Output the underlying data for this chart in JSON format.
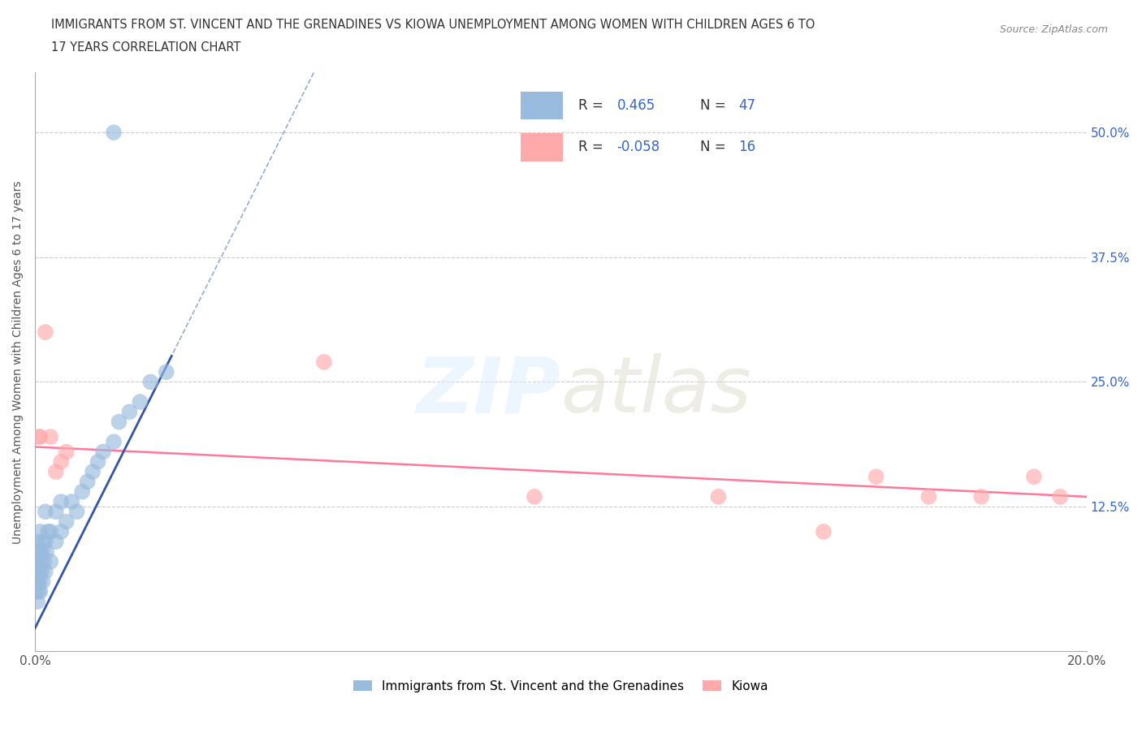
{
  "title_line1": "IMMIGRANTS FROM ST. VINCENT AND THE GRENADINES VS KIOWA UNEMPLOYMENT AMONG WOMEN WITH CHILDREN AGES 6 TO",
  "title_line2": "17 YEARS CORRELATION CHART",
  "source": "Source: ZipAtlas.com",
  "ylabel": "Unemployment Among Women with Children Ages 6 to 17 years",
  "xlim": [
    0.0,
    0.2
  ],
  "ylim": [
    -0.02,
    0.56
  ],
  "blue_R": 0.465,
  "blue_N": 47,
  "pink_R": -0.058,
  "pink_N": 16,
  "legend1_label": "Immigrants from St. Vincent and the Grenadines",
  "legend2_label": "Kiowa",
  "blue_color": "#99BBDD",
  "pink_color": "#FFAAAA",
  "blue_line_color": "#3355AA",
  "pink_line_color": "#FF7799",
  "grid_color": "#CCCCCC",
  "blue_scatter_x": [
    0.0002,
    0.0003,
    0.0003,
    0.0004,
    0.0005,
    0.0005,
    0.0006,
    0.0006,
    0.0007,
    0.0007,
    0.0008,
    0.0009,
    0.001,
    0.001,
    0.001,
    0.0012,
    0.0013,
    0.0014,
    0.0015,
    0.0016,
    0.0018,
    0.002,
    0.002,
    0.002,
    0.0022,
    0.0025,
    0.003,
    0.003,
    0.004,
    0.004,
    0.005,
    0.005,
    0.006,
    0.007,
    0.008,
    0.009,
    0.01,
    0.011,
    0.012,
    0.013,
    0.015,
    0.016,
    0.018,
    0.02,
    0.022,
    0.025,
    0.015
  ],
  "blue_scatter_y": [
    0.04,
    0.06,
    0.09,
    0.05,
    0.03,
    0.07,
    0.05,
    0.08,
    0.04,
    0.07,
    0.06,
    0.05,
    0.04,
    0.08,
    0.1,
    0.07,
    0.06,
    0.08,
    0.05,
    0.09,
    0.07,
    0.06,
    0.09,
    0.12,
    0.08,
    0.1,
    0.07,
    0.1,
    0.09,
    0.12,
    0.1,
    0.13,
    0.11,
    0.13,
    0.12,
    0.14,
    0.15,
    0.16,
    0.17,
    0.18,
    0.19,
    0.21,
    0.22,
    0.23,
    0.25,
    0.26,
    0.5
  ],
  "pink_scatter_x": [
    0.0008,
    0.001,
    0.002,
    0.003,
    0.004,
    0.005,
    0.006,
    0.055,
    0.095,
    0.13,
    0.15,
    0.16,
    0.17,
    0.18,
    0.19,
    0.195
  ],
  "pink_scatter_y": [
    0.195,
    0.195,
    0.3,
    0.195,
    0.16,
    0.17,
    0.18,
    0.27,
    0.135,
    0.135,
    0.1,
    0.155,
    0.135,
    0.135,
    0.155,
    0.135
  ]
}
